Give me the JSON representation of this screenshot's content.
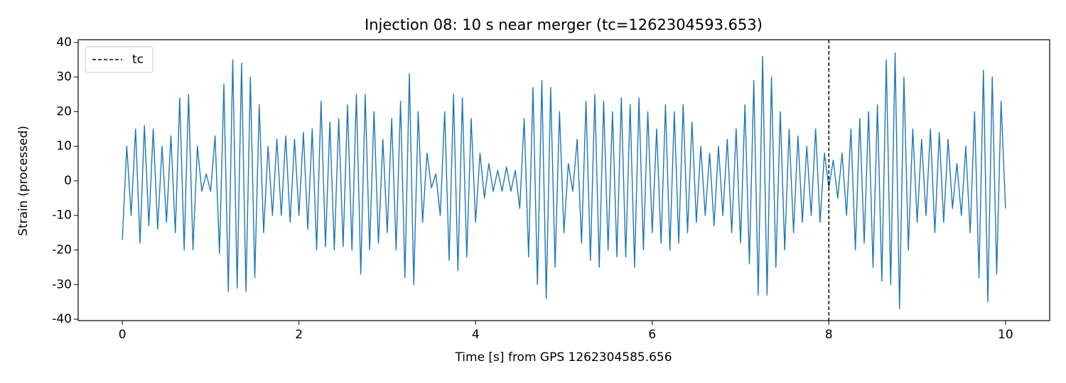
{
  "chart_data": {
    "type": "line",
    "title": "Injection 08: 10 s near merger (tc=1262304593.653)",
    "xlabel": "Time [s] from GPS 1262304585.656",
    "ylabel": "Strain (processed)",
    "x": [
      0,
      0.05,
      0.1,
      0.15,
      0.2,
      0.25,
      0.3,
      0.35,
      0.4,
      0.45,
      0.5,
      0.55,
      0.6,
      0.65,
      0.7,
      0.75,
      0.8,
      0.85,
      0.9,
      0.95,
      1,
      1.05,
      1.1,
      1.15,
      1.2,
      1.25,
      1.3,
      1.35,
      1.4,
      1.45,
      1.5,
      1.55,
      1.6,
      1.65,
      1.7,
      1.75,
      1.8,
      1.85,
      1.9,
      1.95,
      2,
      2.05,
      2.1,
      2.15,
      2.2,
      2.25,
      2.3,
      2.35,
      2.4,
      2.45,
      2.5,
      2.55,
      2.6,
      2.65,
      2.7,
      2.75,
      2.8,
      2.85,
      2.9,
      2.95,
      3,
      3.05,
      3.1,
      3.15,
      3.2,
      3.25,
      3.3,
      3.35,
      3.4,
      3.45,
      3.5,
      3.55,
      3.6,
      3.65,
      3.7,
      3.75,
      3.8,
      3.85,
      3.9,
      3.95,
      4,
      4.05,
      4.1,
      4.15,
      4.2,
      4.25,
      4.3,
      4.35,
      4.4,
      4.45,
      4.5,
      4.55,
      4.6,
      4.65,
      4.7,
      4.75,
      4.8,
      4.85,
      4.9,
      4.95,
      5,
      5.05,
      5.1,
      5.15,
      5.2,
      5.25,
      5.3,
      5.35,
      5.4,
      5.45,
      5.5,
      5.55,
      5.6,
      5.65,
      5.7,
      5.75,
      5.8,
      5.85,
      5.9,
      5.95,
      6,
      6.05,
      6.1,
      6.15,
      6.2,
      6.25,
      6.3,
      6.35,
      6.4,
      6.45,
      6.5,
      6.55,
      6.6,
      6.65,
      6.7,
      6.75,
      6.8,
      6.85,
      6.9,
      6.95,
      7,
      7.05,
      7.1,
      7.15,
      7.2,
      7.25,
      7.3,
      7.35,
      7.4,
      7.45,
      7.5,
      7.55,
      7.6,
      7.65,
      7.7,
      7.75,
      7.8,
      7.85,
      7.9,
      7.95,
      8,
      8.05,
      8.1,
      8.15,
      8.2,
      8.25,
      8.3,
      8.35,
      8.4,
      8.45,
      8.5,
      8.55,
      8.6,
      8.65,
      8.7,
      8.75,
      8.8,
      8.85,
      8.9,
      8.95,
      9,
      9.05,
      9.1,
      9.15,
      9.2,
      9.25,
      9.3,
      9.35,
      9.4,
      9.45,
      9.5,
      9.55,
      9.6,
      9.65,
      9.7,
      9.75,
      9.8,
      9.85,
      9.9,
      9.95,
      10
    ],
    "series": [
      {
        "color": "#1f77b4",
        "values": [
          -17,
          10,
          -10,
          15,
          -18,
          16,
          -13,
          15,
          -14,
          10,
          -12,
          13,
          -15,
          24,
          -20,
          25,
          -20,
          10,
          -3,
          2,
          -3,
          13,
          -21,
          28,
          -32,
          35,
          -31,
          34,
          -32,
          30,
          -28,
          22,
          -15,
          10,
          -10,
          12,
          -10,
          13,
          -12,
          12,
          -10,
          14,
          -14,
          15,
          -20,
          23,
          -19,
          17,
          -20,
          18,
          -19,
          22,
          -20,
          25,
          -27,
          25,
          -20,
          20,
          -18,
          12,
          -15,
          18,
          -20,
          23,
          -28,
          31,
          -30,
          20,
          -12,
          8,
          -2,
          2,
          -10,
          20,
          -23,
          25,
          -26,
          24,
          -22,
          18,
          -12,
          8,
          -5,
          5,
          -3,
          3,
          -3,
          4,
          -3,
          3,
          -8,
          18,
          -22,
          27,
          -30,
          29,
          -34,
          27,
          -25,
          20,
          -15,
          5,
          -3,
          12,
          -18,
          23,
          -23,
          25,
          -25,
          23,
          -20,
          20,
          -22,
          24,
          -22,
          22,
          -25,
          24,
          -20,
          20,
          -15,
          15,
          -18,
          22,
          -20,
          20,
          -18,
          22,
          -15,
          17,
          -12,
          10,
          -10,
          8,
          -13,
          10,
          -10,
          12,
          -15,
          15,
          -18,
          22,
          -24,
          29,
          -33,
          36,
          -33,
          30,
          -25,
          20,
          -20,
          15,
          -15,
          13,
          -12,
          10,
          -10,
          15,
          -12,
          8,
          -2,
          6,
          -5,
          8,
          -10,
          15,
          -20,
          18,
          -18,
          20,
          -25,
          22,
          -29,
          35,
          -30,
          37,
          -37,
          30,
          -20,
          15,
          -12,
          12,
          -10,
          15,
          -15,
          14,
          -12,
          12,
          -8,
          5,
          -10,
          10,
          -15,
          20,
          -28,
          32,
          -35,
          30,
          -27,
          23,
          -8
        ]
      }
    ],
    "vline": {
      "x": 8,
      "label": "tc",
      "color": "#000000"
    },
    "legend": "upper left",
    "xlim": [
      -0.5,
      10.5
    ],
    "xticks": [
      0,
      2,
      4,
      6,
      8,
      10
    ],
    "ylim": [
      -40.4,
      40.8
    ],
    "yticks": [
      -40,
      -30,
      -20,
      -10,
      0,
      10,
      20,
      30,
      40
    ]
  }
}
